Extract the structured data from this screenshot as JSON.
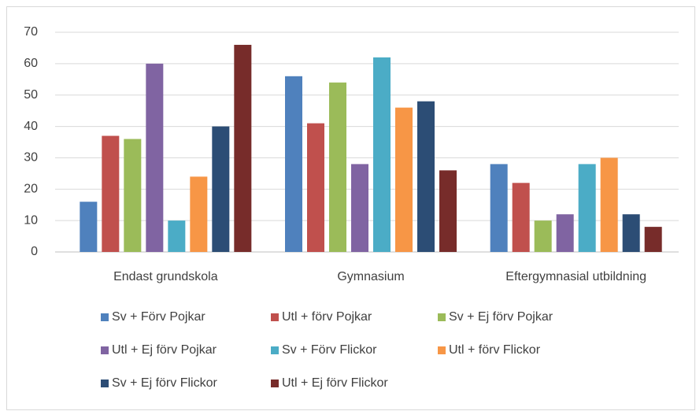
{
  "chart_data": {
    "type": "bar",
    "categories": [
      "Endast grundskola",
      "Gymnasium",
      "Eftergymnasial utbildning"
    ],
    "series": [
      {
        "name": "Sv + Förv Pojkar",
        "color": "#4f81bd",
        "values": [
          16,
          56,
          28
        ]
      },
      {
        "name": "Utl + förv Pojkar",
        "color": "#c0504d",
        "values": [
          37,
          41,
          22
        ]
      },
      {
        "name": "Sv + Ej förv Pojkar",
        "color": "#9bbb59",
        "values": [
          36,
          54,
          10
        ]
      },
      {
        "name": "Utl + Ej förv Pojkar",
        "color": "#8064a2",
        "values": [
          60,
          28,
          12
        ]
      },
      {
        "name": "Sv + Förv Flickor",
        "color": "#4bacc6",
        "values": [
          10,
          62,
          28
        ]
      },
      {
        "name": "Utl + förv Flickor",
        "color": "#f79646",
        "values": [
          24,
          46,
          30
        ]
      },
      {
        "name": "Sv + Ej förv Flickor",
        "color": "#2c4d75",
        "values": [
          40,
          48,
          12
        ]
      },
      {
        "name": "Utl + Ej förv Flickor",
        "color": "#772c2a",
        "values": [
          66,
          26,
          8
        ]
      }
    ],
    "ylim": [
      0,
      70
    ],
    "yticks": [
      0,
      10,
      20,
      30,
      40,
      50,
      60,
      70
    ],
    "grid": true,
    "legend": "bottom"
  }
}
